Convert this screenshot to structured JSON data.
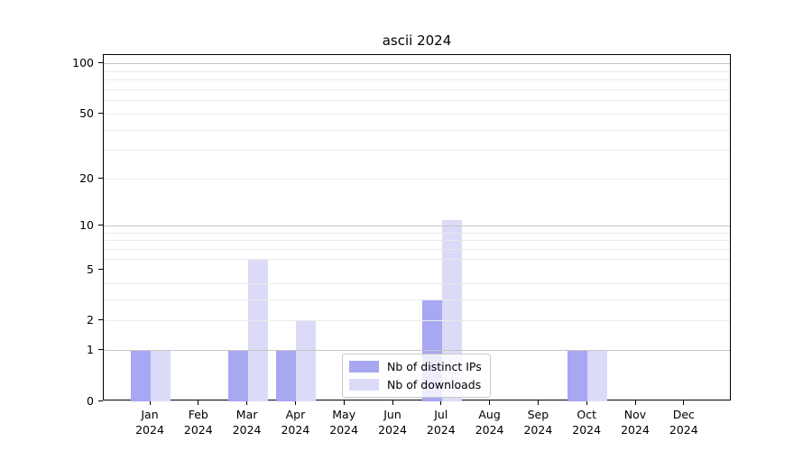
{
  "title": "ascii 2024",
  "chart_data": {
    "type": "bar",
    "title": "ascii 2024",
    "categories": [
      "Jan 2024",
      "Feb 2024",
      "Mar 2024",
      "Apr 2024",
      "May 2024",
      "Jun 2024",
      "Jul 2024",
      "Aug 2024",
      "Sep 2024",
      "Oct 2024",
      "Nov 2024",
      "Dec 2024"
    ],
    "series": [
      {
        "name": "Nb of distinct IPs",
        "color": "#a7a7f2",
        "values": [
          1,
          0,
          1,
          1,
          0,
          0,
          3,
          0,
          0,
          1,
          0,
          0
        ]
      },
      {
        "name": "Nb of downloads",
        "color": "#dbdbf8",
        "values": [
          1,
          0,
          6,
          2,
          0,
          0,
          11,
          0,
          0,
          1,
          0,
          0
        ]
      }
    ],
    "yscale": "log1p",
    "ylim": [
      0,
      113
    ],
    "y_tick_labels": [
      0,
      1,
      2,
      5,
      10,
      20,
      50,
      100
    ],
    "y_major_gridlines": [
      1,
      10,
      100
    ],
    "y_minor_gridlines": [
      2,
      3,
      4,
      6,
      7,
      8,
      9,
      20,
      30,
      40,
      50,
      60,
      70,
      80,
      90
    ],
    "grid": true,
    "legend_position": "lower center"
  },
  "legend": {
    "items": [
      "Nb of distinct IPs",
      "Nb of downloads"
    ]
  },
  "colors": {
    "background": "#ffffff",
    "spine": "#000000",
    "major_grid": "#c6c6c6",
    "minor_grid": "#eaeaea",
    "bar_distinct_ips": "#a7a7f2",
    "bar_downloads": "#dbdbf8"
  }
}
